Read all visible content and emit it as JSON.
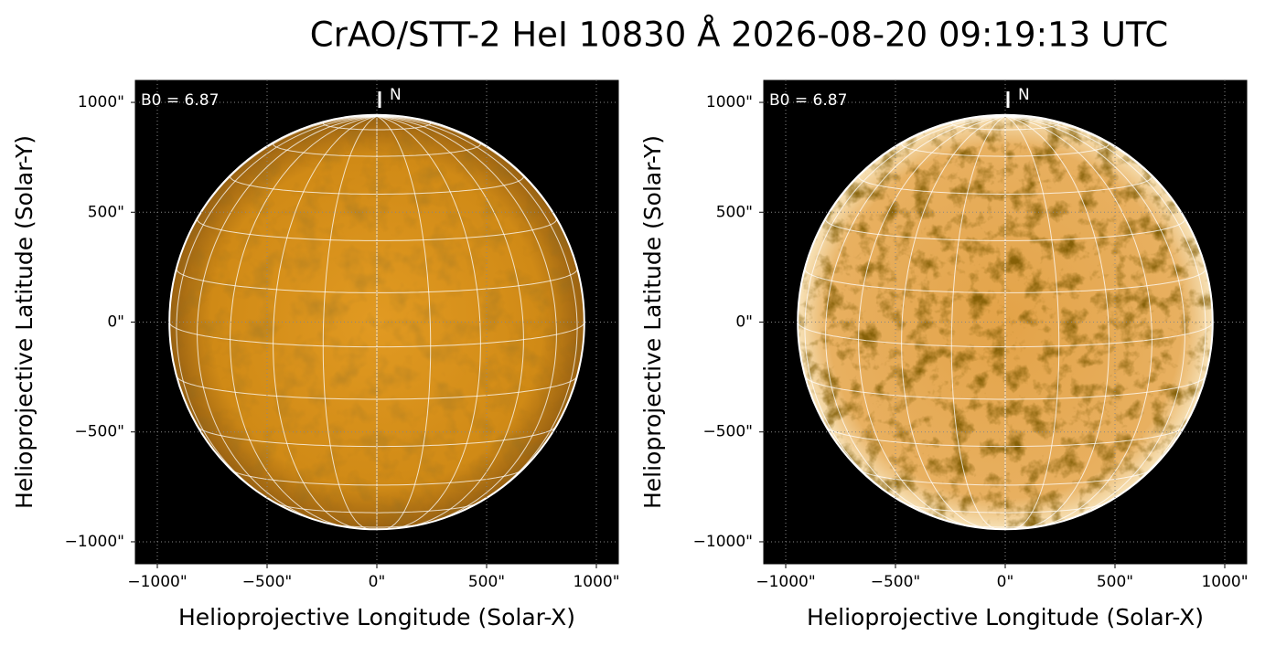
{
  "title": "CrAO/STT-2 HeI 10830 Å 2026-08-20 09:19:13 UTC",
  "chart_data": [
    {
      "type": "image",
      "style": "plain",
      "xlabel": "Helioprojective Longitude (Solar-X)",
      "ylabel": "Helioprojective Latitude (Solar-Y)",
      "annotations": [
        {
          "value": 6.87,
          "label": "B0 = 6.87"
        },
        "N"
      ],
      "xlim": [
        -1100,
        1100
      ],
      "ylim": [
        -1100,
        1100
      ],
      "xticks": [
        {
          "value": -1000,
          "label": "−1000\""
        },
        {
          "value": -500,
          "label": "−500\""
        },
        {
          "value": 0,
          "label": "0\""
        },
        {
          "value": 500,
          "label": "500\""
        },
        {
          "value": 1000,
          "label": "1000\""
        }
      ],
      "yticks": [
        {
          "value": -1000,
          "label": "−1000\""
        },
        {
          "value": -500,
          "label": "−500\""
        },
        {
          "value": 0,
          "label": "0\""
        },
        {
          "value": 500,
          "label": "500\""
        },
        {
          "value": 1000,
          "label": "1000\""
        }
      ]
    },
    {
      "type": "image",
      "style": "enhanced",
      "xlabel": "Helioprojective Longitude (Solar-X)",
      "ylabel": "Helioprojective Latitude (Solar-Y)",
      "annotations": [
        {
          "value": 6.87,
          "label": "B0 = 6.87"
        },
        "N"
      ],
      "xlim": [
        -1100,
        1100
      ],
      "ylim": [
        -1100,
        1100
      ],
      "xticks": [
        {
          "value": -1000,
          "label": "−1000\""
        },
        {
          "value": -500,
          "label": "−500\""
        },
        {
          "value": 0,
          "label": "0\""
        },
        {
          "value": 500,
          "label": "500\""
        },
        {
          "value": 1000,
          "label": "1000\""
        }
      ],
      "yticks": [
        {
          "value": -1000,
          "label": "−1000\""
        },
        {
          "value": -500,
          "label": "−500\""
        },
        {
          "value": 0,
          "label": "0\""
        },
        {
          "value": 500,
          "label": "500\""
        },
        {
          "value": 1000,
          "label": "1000\""
        }
      ]
    }
  ]
}
